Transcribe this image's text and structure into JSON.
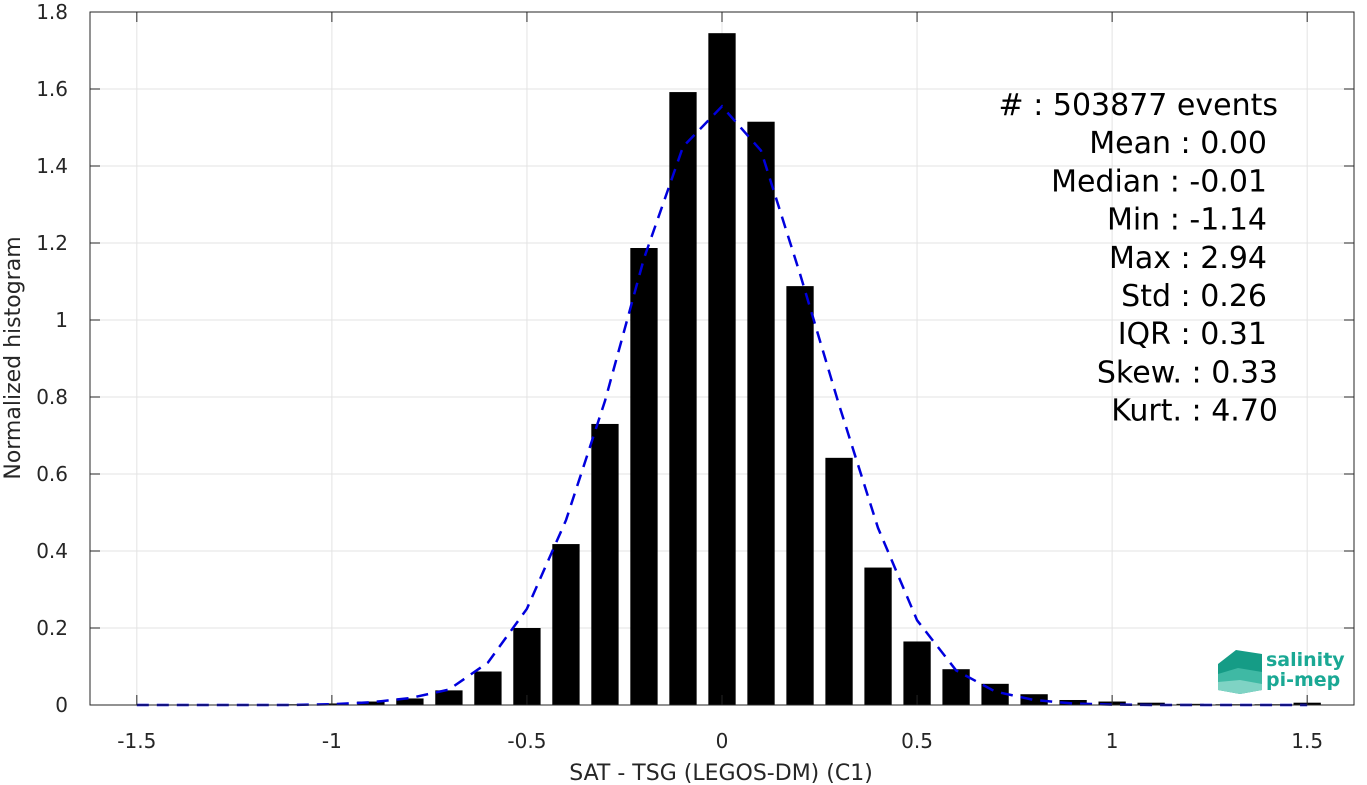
{
  "chart_data": {
    "type": "bar",
    "xlabel": "SAT - TSG (LEGOS-DM) (C1)",
    "ylabel": "Normalized histogram",
    "xlim": [
      -1.62,
      1.62
    ],
    "ylim": [
      0,
      1.8
    ],
    "xticks": [
      -1.5,
      -1,
      -0.5,
      0,
      0.5,
      1,
      1.5
    ],
    "xtick_labels": [
      "-1.5",
      "-1",
      "-0.5",
      "0",
      "0.5",
      "1",
      "1.5"
    ],
    "yticks": [
      0,
      0.2,
      0.4,
      0.6,
      0.8,
      1,
      1.2,
      1.4,
      1.6,
      1.8
    ],
    "ytick_labels": [
      "0",
      "0.2",
      "0.4",
      "0.6",
      "0.8",
      "1",
      "1.2",
      "1.4",
      "1.6",
      "1.8"
    ],
    "grid": true,
    "bar_width": 0.07,
    "bar_color": "#000000",
    "bars": {
      "x": [
        -1.5,
        -1.4,
        -1.3,
        -1.2,
        -1.1,
        -1.0,
        -0.9,
        -0.8,
        -0.7,
        -0.6,
        -0.5,
        -0.4,
        -0.3,
        -0.2,
        -0.1,
        0.0,
        0.1,
        0.2,
        0.3,
        0.4,
        0.5,
        0.6,
        0.7,
        0.8,
        0.9,
        1.0,
        1.1,
        1.2,
        1.3,
        1.4,
        1.5
      ],
      "y": [
        0.0,
        0.0,
        0.0,
        0.0,
        0.002,
        0.004,
        0.009,
        0.017,
        0.038,
        0.087,
        0.2,
        0.418,
        0.73,
        1.187,
        1.592,
        1.745,
        1.515,
        1.088,
        0.642,
        0.357,
        0.165,
        0.093,
        0.055,
        0.028,
        0.013,
        0.009,
        0.006,
        0.003,
        0.002,
        0.002,
        0.006
      ]
    },
    "fit_line": {
      "style": "dashed",
      "color": "#0000dd",
      "x": [
        -1.5,
        -1.4,
        -1.3,
        -1.2,
        -1.1,
        -1.0,
        -0.9,
        -0.8,
        -0.7,
        -0.6,
        -0.5,
        -0.4,
        -0.3,
        -0.2,
        -0.1,
        0.0,
        0.1,
        0.2,
        0.3,
        0.4,
        0.5,
        0.6,
        0.7,
        0.8,
        0.9,
        1.0,
        1.1,
        1.2,
        1.3,
        1.4,
        1.5
      ],
      "y": [
        0.0,
        0.0,
        0.0,
        0.0,
        0.0,
        0.002,
        0.007,
        0.018,
        0.04,
        0.11,
        0.25,
        0.48,
        0.79,
        1.16,
        1.45,
        1.555,
        1.44,
        1.12,
        0.78,
        0.46,
        0.22,
        0.09,
        0.035,
        0.013,
        0.004,
        0.001,
        0.0,
        0.0,
        0.0,
        0.0,
        0.0
      ]
    },
    "annotations": [
      {
        "label": "#  ",
        "value": ": 503877 events"
      },
      {
        "label": "Mean ",
        "value": ": 0.00"
      },
      {
        "label": "Median ",
        "value": ": -0.01"
      },
      {
        "label": "Min ",
        "value": ": -1.14"
      },
      {
        "label": "Max ",
        "value": ": 2.94"
      },
      {
        "label": "Std ",
        "value": ": 0.26"
      },
      {
        "label": "IQR ",
        "value": ": 0.31"
      },
      {
        "label": "Skew. ",
        "value": ": 0.33"
      },
      {
        "label": "Kurt. ",
        "value": ": 4.70"
      }
    ]
  },
  "logo": {
    "line1": "salinity",
    "line2": "pi-mep",
    "color": "#1aa894"
  }
}
